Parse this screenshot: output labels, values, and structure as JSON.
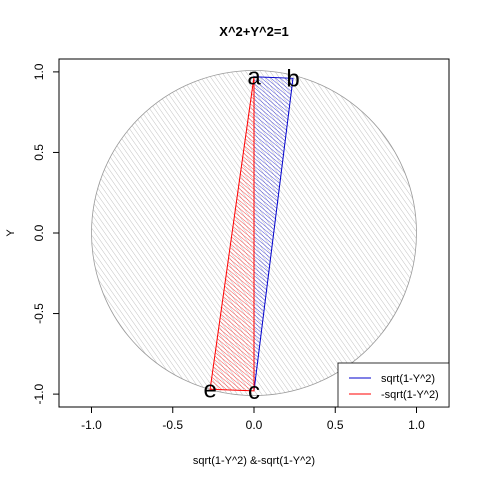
{
  "chart_data": {
    "type": "scatter",
    "title": "X^2+Y^2=1",
    "xlabel": "sqrt(1-Y^2) &-sqrt(1-Y^2)",
    "ylabel": "Y",
    "xlim": [
      -1.2,
      1.2
    ],
    "ylim": [
      -1.08,
      1.08
    ],
    "x_ticks": [
      {
        "value": -1.0,
        "label": "-1.0"
      },
      {
        "value": -0.5,
        "label": "-0.5"
      },
      {
        "value": 0.0,
        "label": "0.0"
      },
      {
        "value": 0.5,
        "label": "0.5"
      },
      {
        "value": 1.0,
        "label": "1.0"
      }
    ],
    "y_ticks": [
      {
        "value": -1.0,
        "label": "-1.0"
      },
      {
        "value": -0.5,
        "label": "-0.5"
      },
      {
        "value": 0.0,
        "label": "0.0"
      },
      {
        "value": 0.5,
        "label": "0.5"
      },
      {
        "value": 1.0,
        "label": "1.0"
      }
    ],
    "circle": {
      "radius": 1,
      "fill": "#bdbdbd",
      "hatched": true
    },
    "points": [
      {
        "label": "a",
        "x": 0.0,
        "y": 0.97
      },
      {
        "label": "b",
        "x": 0.24,
        "y": 0.96
      },
      {
        "label": "c",
        "x": 0.0,
        "y": -0.98
      },
      {
        "label": "e",
        "x": -0.27,
        "y": -0.97
      }
    ],
    "series": [
      {
        "name": "sqrt(1-Y^2)",
        "color": "#0000cc",
        "polygon": [
          [
            0.0,
            0.97
          ],
          [
            0.24,
            0.96
          ],
          [
            0.0,
            -0.98
          ]
        ]
      },
      {
        "name": "-sqrt(1-Y^2)",
        "color": "#ff0000",
        "polygon": [
          [
            0.0,
            0.97
          ],
          [
            -0.27,
            -0.97
          ],
          [
            0.0,
            -0.98
          ]
        ]
      }
    ],
    "legend_position": "bottom-right",
    "grid": false
  }
}
